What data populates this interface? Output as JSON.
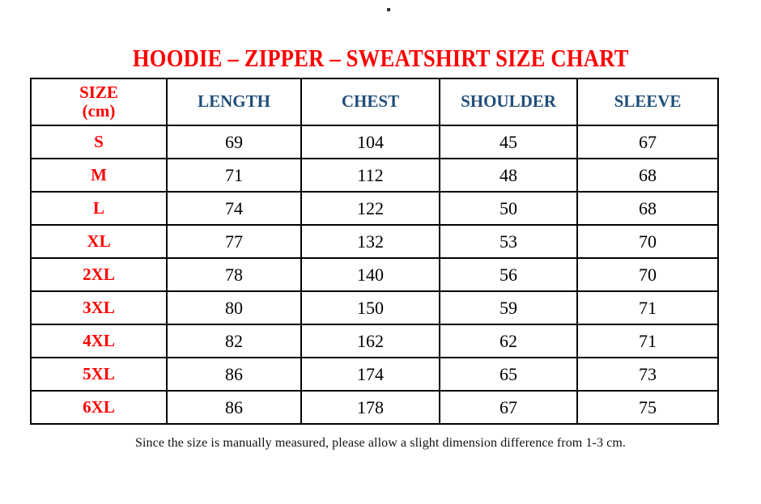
{
  "page": {
    "background": "#ffffff"
  },
  "colors": {
    "title_red": "#fe0000",
    "size_label_red": "#fe0000",
    "header_blue": "#1f4e79",
    "value_black": "#000000",
    "border_black": "#000000"
  },
  "title": {
    "text": "HOODIE – ZIPPER – SWEATSHIRT SIZE CHART"
  },
  "table": {
    "headers": {
      "size_line1": "SIZE",
      "size_line2": "(cm)",
      "length": "LENGTH",
      "chest": "CHEST",
      "shoulder": "SHOULDER",
      "sleeve": "SLEEVE"
    },
    "rows": [
      {
        "size": "S",
        "length": "69",
        "chest": "104",
        "shoulder": "45",
        "sleeve": "67"
      },
      {
        "size": "M",
        "length": "71",
        "chest": "112",
        "shoulder": "48",
        "sleeve": "68"
      },
      {
        "size": "L",
        "length": "74",
        "chest": "122",
        "shoulder": "50",
        "sleeve": "68"
      },
      {
        "size": "XL",
        "length": "77",
        "chest": "132",
        "shoulder": "53",
        "sleeve": "70"
      },
      {
        "size": "2XL",
        "length": "78",
        "chest": "140",
        "shoulder": "56",
        "sleeve": "70"
      },
      {
        "size": "3XL",
        "length": "80",
        "chest": "150",
        "shoulder": "59",
        "sleeve": "71"
      },
      {
        "size": "4XL",
        "length": "82",
        "chest": "162",
        "shoulder": "62",
        "sleeve": "71"
      },
      {
        "size": "5XL",
        "length": "86",
        "chest": "174",
        "shoulder": "65",
        "sleeve": "73"
      },
      {
        "size": "6XL",
        "length": "86",
        "chest": "178",
        "shoulder": "67",
        "sleeve": "75"
      }
    ]
  },
  "footer": {
    "note": "Since the size is manually measured, please allow a slight dimension difference from 1-3 cm."
  }
}
